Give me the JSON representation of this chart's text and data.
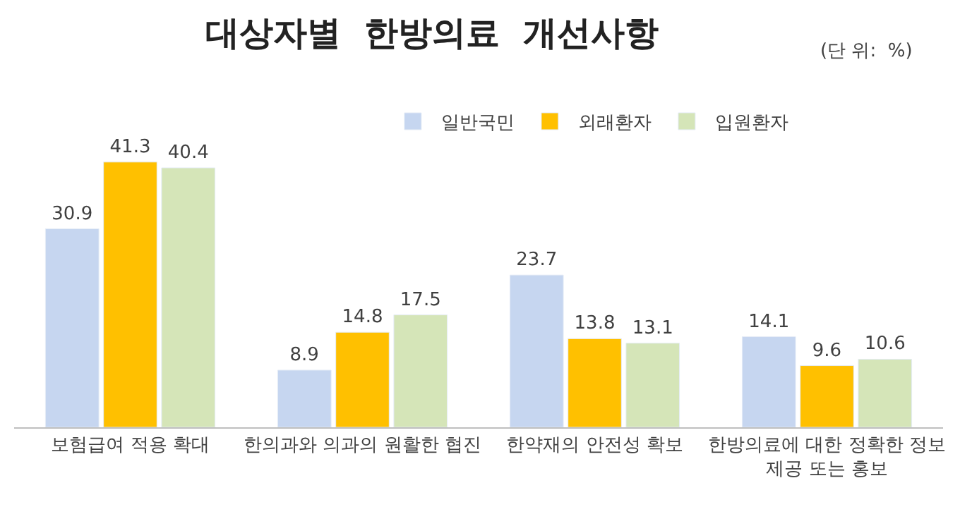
{
  "chart_data": {
    "type": "bar",
    "title": "대상자별  한방의료  개선사항",
    "annotations": [
      "(단 위:  %)"
    ],
    "categories": [
      "보험급여 적용 확대",
      "한의과와 의과의 원활한 협진",
      "한약재의 안전성 확보",
      "한방의료에 대한 정확한 정보\n제공 또는 홍보"
    ],
    "series": [
      {
        "name": "일반국민",
        "color": "#c6d6f0",
        "values": [
          30.9,
          8.9,
          23.7,
          14.1
        ]
      },
      {
        "name": "외래환자",
        "color": "#ffc000",
        "values": [
          41.3,
          14.8,
          13.8,
          9.6
        ]
      },
      {
        "name": "입원환자",
        "color": "#d5e5b8",
        "values": [
          40.4,
          17.5,
          13.1,
          10.6
        ]
      }
    ],
    "data_labels": true,
    "legend": "top"
  }
}
